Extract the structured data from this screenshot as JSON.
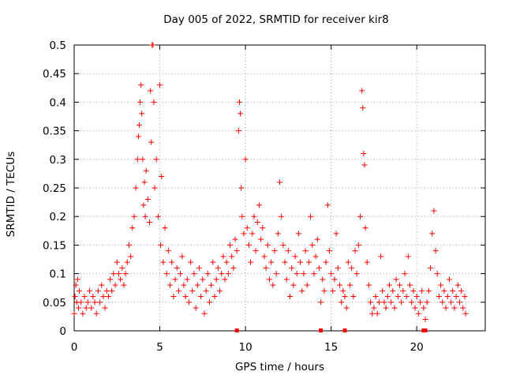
{
  "chart_data": {
    "type": "scatter",
    "title": "Day 005 of 2022, SRMTID for receiver kir8",
    "xlabel": "GPS time / hours",
    "ylabel": "SRMTID / TECUs",
    "xlim": [
      0,
      24
    ],
    "ylim": [
      0,
      0.5
    ],
    "xticks": [
      "0",
      "5",
      "10",
      "15",
      "20"
    ],
    "yticks": [
      "0",
      "0.05",
      "0.1",
      "0.15",
      "0.2",
      "0.25",
      "0.3",
      "0.35",
      "0.4",
      "0.45",
      "0.5"
    ],
    "xtick_values": [
      0,
      5,
      10,
      15,
      20
    ],
    "ytick_values": [
      0,
      0.05,
      0.1,
      0.15,
      0.2,
      0.25,
      0.3,
      0.35,
      0.4,
      0.45,
      0.5
    ],
    "grid": true,
    "marker": "plus",
    "color": "#ff0000",
    "points": [
      [
        0.0,
        0.03
      ],
      [
        0.05,
        0.06
      ],
      [
        0.1,
        0.08
      ],
      [
        0.15,
        0.05
      ],
      [
        0.2,
        0.09
      ],
      [
        0.25,
        0.04
      ],
      [
        0.3,
        0.07
      ],
      [
        0.4,
        0.05
      ],
      [
        0.5,
        0.03
      ],
      [
        0.6,
        0.06
      ],
      [
        0.7,
        0.04
      ],
      [
        0.8,
        0.05
      ],
      [
        0.9,
        0.07
      ],
      [
        1.0,
        0.04
      ],
      [
        1.1,
        0.06
      ],
      [
        1.2,
        0.05
      ],
      [
        1.3,
        0.03
      ],
      [
        1.4,
        0.07
      ],
      [
        1.5,
        0.05
      ],
      [
        1.6,
        0.08
      ],
      [
        1.7,
        0.06
      ],
      [
        1.8,
        0.04
      ],
      [
        1.9,
        0.07
      ],
      [
        2.0,
        0.06
      ],
      [
        2.1,
        0.09
      ],
      [
        2.2,
        0.07
      ],
      [
        2.3,
        0.1
      ],
      [
        2.4,
        0.08
      ],
      [
        2.5,
        0.12
      ],
      [
        2.6,
        0.1
      ],
      [
        2.7,
        0.09
      ],
      [
        2.8,
        0.11
      ],
      [
        2.9,
        0.08
      ],
      [
        3.0,
        0.1
      ],
      [
        3.1,
        0.12
      ],
      [
        3.2,
        0.15
      ],
      [
        3.3,
        0.13
      ],
      [
        3.4,
        0.18
      ],
      [
        3.5,
        0.2
      ],
      [
        3.6,
        0.25
      ],
      [
        3.7,
        0.3
      ],
      [
        3.75,
        0.34
      ],
      [
        3.8,
        0.36
      ],
      [
        3.85,
        0.4
      ],
      [
        3.9,
        0.43
      ],
      [
        3.95,
        0.38
      ],
      [
        4.0,
        0.3
      ],
      [
        4.05,
        0.22
      ],
      [
        4.1,
        0.26
      ],
      [
        4.15,
        0.2
      ],
      [
        4.2,
        0.28
      ],
      [
        4.3,
        0.23
      ],
      [
        4.4,
        0.19
      ],
      [
        4.45,
        0.42
      ],
      [
        4.5,
        0.33
      ],
      [
        4.55,
        0.5
      ],
      [
        4.6,
        0.5
      ],
      [
        4.65,
        0.4
      ],
      [
        4.7,
        0.25
      ],
      [
        4.8,
        0.3
      ],
      [
        4.9,
        0.2
      ],
      [
        5.0,
        0.43
      ],
      [
        5.05,
        0.15
      ],
      [
        5.1,
        0.27
      ],
      [
        5.2,
        0.12
      ],
      [
        5.3,
        0.18
      ],
      [
        5.4,
        0.1
      ],
      [
        5.5,
        0.14
      ],
      [
        5.6,
        0.08
      ],
      [
        5.7,
        0.12
      ],
      [
        5.8,
        0.06
      ],
      [
        5.9,
        0.09
      ],
      [
        6.0,
        0.11
      ],
      [
        6.1,
        0.07
      ],
      [
        6.2,
        0.1
      ],
      [
        6.3,
        0.13
      ],
      [
        6.4,
        0.08
      ],
      [
        6.5,
        0.06
      ],
      [
        6.6,
        0.09
      ],
      [
        6.7,
        0.05
      ],
      [
        6.8,
        0.12
      ],
      [
        6.9,
        0.07
      ],
      [
        7.0,
        0.1
      ],
      [
        7.1,
        0.04
      ],
      [
        7.2,
        0.08
      ],
      [
        7.3,
        0.11
      ],
      [
        7.4,
        0.06
      ],
      [
        7.5,
        0.09
      ],
      [
        7.6,
        0.03
      ],
      [
        7.7,
        0.07
      ],
      [
        7.8,
        0.1
      ],
      [
        7.9,
        0.05
      ],
      [
        8.0,
        0.08
      ],
      [
        8.1,
        0.12
      ],
      [
        8.2,
        0.06
      ],
      [
        8.3,
        0.09
      ],
      [
        8.4,
        0.11
      ],
      [
        8.5,
        0.07
      ],
      [
        8.6,
        0.1
      ],
      [
        8.7,
        0.13
      ],
      [
        8.8,
        0.09
      ],
      [
        8.9,
        0.12
      ],
      [
        9.0,
        0.1
      ],
      [
        9.1,
        0.15
      ],
      [
        9.2,
        0.13
      ],
      [
        9.3,
        0.11
      ],
      [
        9.4,
        0.16
      ],
      [
        9.5,
        0.14
      ],
      [
        9.6,
        0.35
      ],
      [
        9.65,
        0.4
      ],
      [
        9.7,
        0.38
      ],
      [
        9.75,
        0.25
      ],
      [
        9.8,
        0.2
      ],
      [
        9.9,
        0.17
      ],
      [
        10.0,
        0.3
      ],
      [
        10.1,
        0.18
      ],
      [
        10.2,
        0.15
      ],
      [
        10.3,
        0.12
      ],
      [
        10.4,
        0.17
      ],
      [
        10.5,
        0.2
      ],
      [
        10.6,
        0.14
      ],
      [
        10.7,
        0.19
      ],
      [
        10.8,
        0.22
      ],
      [
        10.9,
        0.16
      ],
      [
        11.0,
        0.18
      ],
      [
        11.1,
        0.13
      ],
      [
        11.2,
        0.11
      ],
      [
        11.3,
        0.15
      ],
      [
        11.4,
        0.09
      ],
      [
        11.5,
        0.12
      ],
      [
        11.6,
        0.08
      ],
      [
        11.7,
        0.14
      ],
      [
        11.8,
        0.1
      ],
      [
        11.9,
        0.17
      ],
      [
        12.0,
        0.26
      ],
      [
        12.1,
        0.2
      ],
      [
        12.2,
        0.15
      ],
      [
        12.3,
        0.12
      ],
      [
        12.4,
        0.09
      ],
      [
        12.5,
        0.14
      ],
      [
        12.6,
        0.06
      ],
      [
        12.7,
        0.11
      ],
      [
        12.8,
        0.08
      ],
      [
        12.9,
        0.13
      ],
      [
        13.0,
        0.1
      ],
      [
        13.1,
        0.17
      ],
      [
        13.2,
        0.12
      ],
      [
        13.3,
        0.07
      ],
      [
        13.4,
        0.1
      ],
      [
        13.5,
        0.14
      ],
      [
        13.6,
        0.08
      ],
      [
        13.7,
        0.12
      ],
      [
        13.8,
        0.2
      ],
      [
        13.9,
        0.15
      ],
      [
        14.0,
        0.1
      ],
      [
        14.1,
        0.13
      ],
      [
        14.2,
        0.16
      ],
      [
        14.3,
        0.11
      ],
      [
        14.4,
        0.05
      ],
      [
        14.5,
        0.09
      ],
      [
        14.6,
        0.07
      ],
      [
        14.7,
        0.12
      ],
      [
        14.8,
        0.22
      ],
      [
        14.9,
        0.14
      ],
      [
        15.0,
        0.1
      ],
      [
        15.1,
        0.07
      ],
      [
        15.2,
        0.09
      ],
      [
        15.3,
        0.17
      ],
      [
        15.4,
        0.11
      ],
      [
        15.5,
        0.08
      ],
      [
        15.6,
        0.05
      ],
      [
        15.7,
        0.07
      ],
      [
        15.8,
        0.06
      ],
      [
        15.9,
        0.04
      ],
      [
        16.0,
        0.12
      ],
      [
        16.1,
        0.08
      ],
      [
        16.2,
        0.11
      ],
      [
        16.3,
        0.06
      ],
      [
        16.4,
        0.14
      ],
      [
        16.5,
        0.1
      ],
      [
        16.6,
        0.15
      ],
      [
        16.7,
        0.2
      ],
      [
        16.8,
        0.42
      ],
      [
        16.85,
        0.39
      ],
      [
        16.9,
        0.31
      ],
      [
        16.95,
        0.29
      ],
      [
        17.0,
        0.18
      ],
      [
        17.1,
        0.12
      ],
      [
        17.2,
        0.08
      ],
      [
        17.3,
        0.05
      ],
      [
        17.4,
        0.03
      ],
      [
        17.5,
        0.04
      ],
      [
        17.6,
        0.06
      ],
      [
        17.7,
        0.03
      ],
      [
        17.8,
        0.05
      ],
      [
        17.9,
        0.13
      ],
      [
        18.0,
        0.07
      ],
      [
        18.1,
        0.05
      ],
      [
        18.2,
        0.04
      ],
      [
        18.3,
        0.06
      ],
      [
        18.4,
        0.08
      ],
      [
        18.5,
        0.05
      ],
      [
        18.6,
        0.07
      ],
      [
        18.7,
        0.04
      ],
      [
        18.8,
        0.09
      ],
      [
        18.9,
        0.06
      ],
      [
        19.0,
        0.08
      ],
      [
        19.1,
        0.05
      ],
      [
        19.2,
        0.07
      ],
      [
        19.3,
        0.1
      ],
      [
        19.4,
        0.06
      ],
      [
        19.5,
        0.13
      ],
      [
        19.6,
        0.08
      ],
      [
        19.7,
        0.05
      ],
      [
        19.8,
        0.07
      ],
      [
        19.9,
        0.04
      ],
      [
        20.0,
        0.06
      ],
      [
        20.1,
        0.03
      ],
      [
        20.2,
        0.05
      ],
      [
        20.3,
        0.07
      ],
      [
        20.4,
        0.04
      ],
      [
        20.5,
        0.02
      ],
      [
        20.6,
        0.05
      ],
      [
        20.7,
        0.07
      ],
      [
        20.8,
        0.11
      ],
      [
        20.9,
        0.17
      ],
      [
        21.0,
        0.21
      ],
      [
        21.1,
        0.14
      ],
      [
        21.2,
        0.1
      ],
      [
        21.3,
        0.06
      ],
      [
        21.4,
        0.08
      ],
      [
        21.5,
        0.05
      ],
      [
        21.6,
        0.07
      ],
      [
        21.7,
        0.04
      ],
      [
        21.8,
        0.06
      ],
      [
        21.9,
        0.09
      ],
      [
        22.0,
        0.05
      ],
      [
        22.1,
        0.07
      ],
      [
        22.2,
        0.04
      ],
      [
        22.3,
        0.06
      ],
      [
        22.4,
        0.08
      ],
      [
        22.5,
        0.05
      ],
      [
        22.6,
        0.07
      ],
      [
        22.7,
        0.04
      ],
      [
        22.8,
        0.06
      ],
      [
        22.85,
        0.03
      ]
    ],
    "gap_marks_x": [
      9.5,
      14.4,
      15.8,
      20.4,
      20.5
    ]
  }
}
